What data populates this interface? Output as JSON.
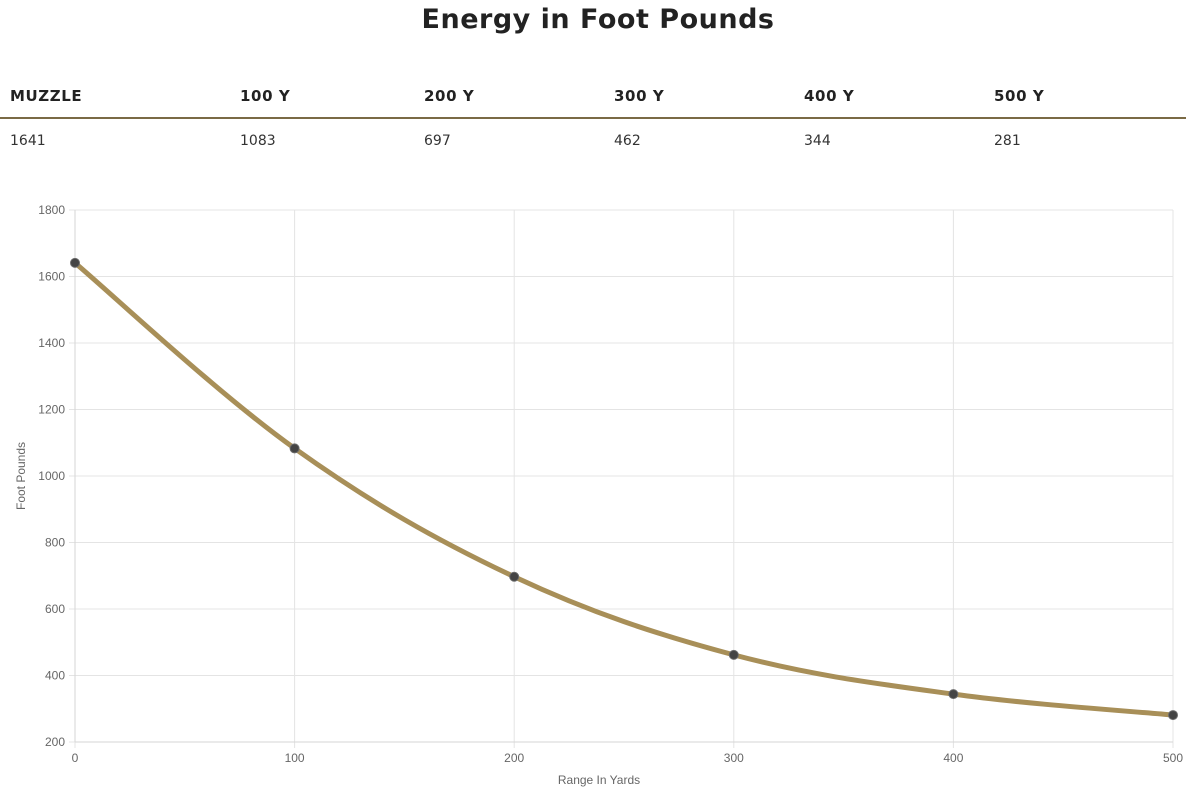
{
  "title": "Energy in Foot Pounds",
  "table": {
    "headers": [
      "MUZZLE",
      "100 Y",
      "200 Y",
      "300 Y",
      "400 Y",
      "500 Y"
    ],
    "values": [
      "1641",
      "1083",
      "697",
      "462",
      "344",
      "281"
    ]
  },
  "colors": {
    "line": "#a88f58",
    "point_fill": "#444444",
    "grid": "#e4e4e4",
    "rule": "#7a6a45"
  },
  "chart_data": {
    "type": "line",
    "x": [
      0,
      100,
      200,
      300,
      400,
      500
    ],
    "series": [
      {
        "values": [
          1641,
          1083,
          697,
          462,
          344,
          281
        ]
      }
    ],
    "xlabel": "Range In Yards",
    "ylabel": "Foot Pounds",
    "xlim": [
      0,
      500
    ],
    "ylim": [
      200,
      1800
    ],
    "xticks": [
      0,
      100,
      200,
      300,
      400,
      500
    ],
    "yticks": [
      200,
      400,
      600,
      800,
      1000,
      1200,
      1400,
      1600,
      1800
    ],
    "grid": true,
    "legend": "none"
  }
}
